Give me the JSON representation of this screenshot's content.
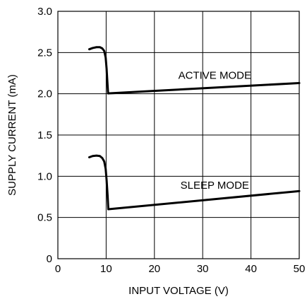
{
  "chart_data": {
    "type": "line",
    "xlabel": "INPUT VOLTAGE (V)",
    "ylabel": "SUPPLY CURRENT (mA)",
    "xlim": [
      0,
      50
    ],
    "ylim": [
      0,
      3.0
    ],
    "xticks": [
      0,
      10,
      20,
      30,
      40,
      50
    ],
    "xtick_labels": [
      "0",
      "10",
      "20",
      "30",
      "40",
      "50"
    ],
    "yticks": [
      0,
      0.5,
      1.0,
      1.5,
      2.0,
      2.5,
      3.0
    ],
    "ytick_labels": [
      "0",
      "0.5",
      "1.0",
      "1.5",
      "2.0",
      "2.5",
      "3.0"
    ],
    "grid": true,
    "series": [
      {
        "name": "ACTIVE MODE",
        "points": [
          [
            6.5,
            2.54
          ],
          [
            7.2,
            2.555
          ],
          [
            8.0,
            2.565
          ],
          [
            8.7,
            2.565
          ],
          [
            9.2,
            2.55
          ],
          [
            9.6,
            2.52
          ],
          [
            9.9,
            2.44
          ],
          [
            10.1,
            2.3
          ],
          [
            10.25,
            2.15
          ],
          [
            10.4,
            2.005
          ],
          [
            50,
            2.13
          ]
        ]
      },
      {
        "name": "SLEEP MODE",
        "points": [
          [
            6.5,
            1.23
          ],
          [
            7.2,
            1.245
          ],
          [
            8.0,
            1.25
          ],
          [
            8.7,
            1.245
          ],
          [
            9.2,
            1.22
          ],
          [
            9.6,
            1.18
          ],
          [
            9.9,
            1.09
          ],
          [
            10.1,
            0.95
          ],
          [
            10.3,
            0.77
          ],
          [
            10.45,
            0.6
          ],
          [
            50,
            0.82
          ]
        ]
      }
    ]
  }
}
